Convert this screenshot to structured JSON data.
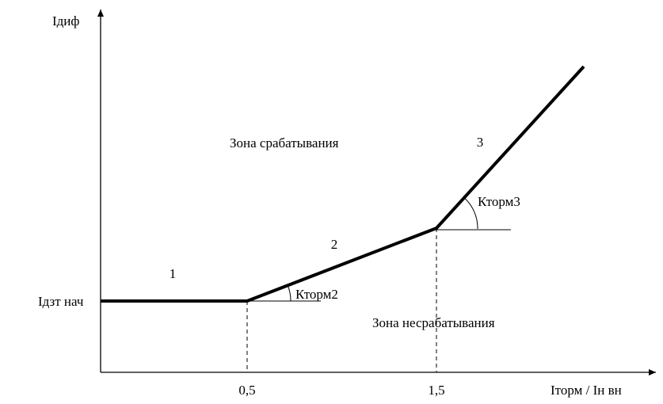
{
  "axes": {
    "y_label": "Iдиф",
    "x_label": "Iторм / Iн вн",
    "y_mark": "Iдзт нач",
    "x_marks": [
      "0,5",
      "1,5"
    ]
  },
  "zones": {
    "operate": "Зона срабатывания",
    "restrain": "Зона несрабатывания"
  },
  "segments": [
    "1",
    "2",
    "3"
  ],
  "slopes": [
    "Кторм2",
    "Кторм3"
  ]
}
